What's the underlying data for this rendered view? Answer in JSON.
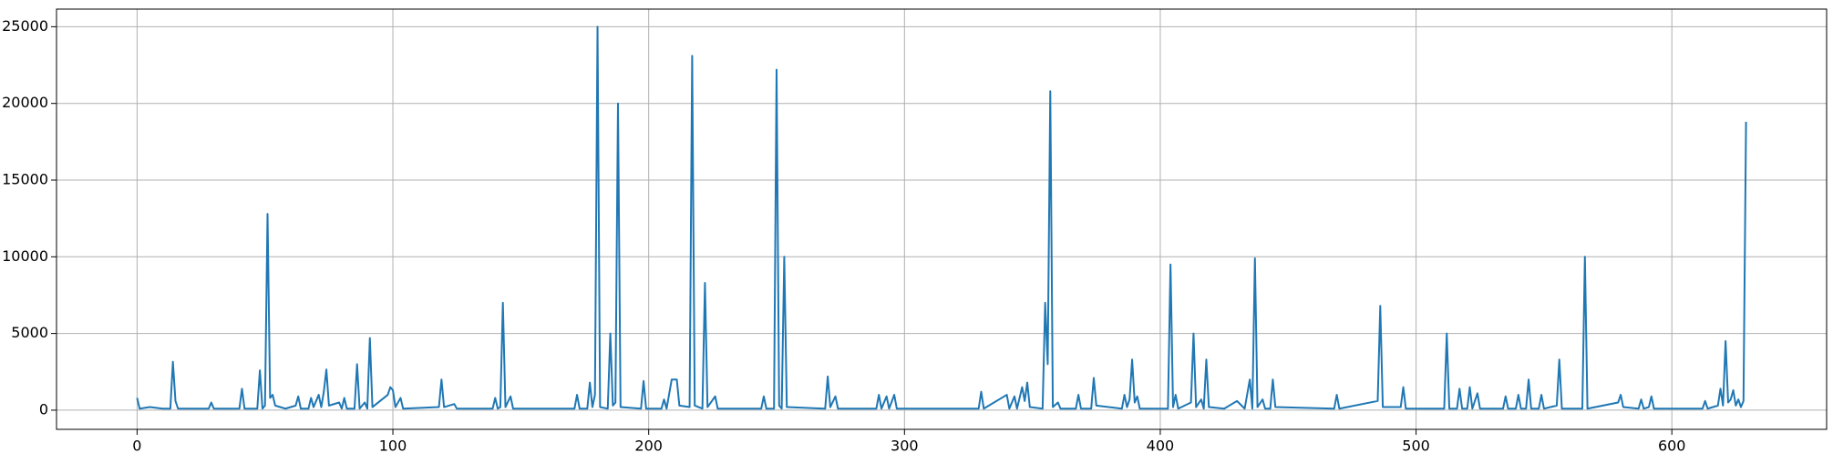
{
  "chart_data": {
    "type": "line",
    "x": [
      0,
      1,
      5,
      10,
      13,
      14,
      15,
      16,
      28,
      29,
      30,
      40,
      41,
      42,
      47,
      48,
      49,
      50,
      51,
      52,
      53,
      54,
      58,
      62,
      63,
      64,
      67,
      68,
      69,
      71,
      72,
      73,
      74,
      75,
      79,
      80,
      81,
      82,
      85,
      86,
      87,
      89,
      90,
      91,
      92,
      98,
      99,
      100,
      101,
      103,
      104,
      118,
      119,
      120,
      124,
      125,
      139,
      140,
      141,
      142,
      143,
      144,
      146,
      147,
      171,
      172,
      173,
      176,
      177,
      178,
      179,
      180,
      181,
      184,
      185,
      186,
      187,
      188,
      189,
      197,
      198,
      199,
      205,
      206,
      207,
      209,
      211,
      212,
      216,
      217,
      218,
      221,
      222,
      223,
      226,
      227,
      244,
      245,
      246,
      249,
      250,
      251,
      252,
      253,
      254,
      269,
      270,
      271,
      273,
      274,
      289,
      290,
      291,
      293,
      294,
      296,
      297,
      329,
      330,
      331,
      340,
      341,
      343,
      344,
      346,
      347,
      348,
      349,
      354,
      355,
      356,
      357,
      358,
      360,
      361,
      367,
      368,
      369,
      373,
      374,
      375,
      385,
      386,
      387,
      388,
      389,
      390,
      391,
      392,
      403,
      404,
      405,
      406,
      407,
      412,
      413,
      414,
      416,
      417,
      418,
      419,
      425,
      430,
      433,
      435,
      436,
      437,
      438,
      440,
      441,
      443,
      444,
      445,
      468,
      469,
      470,
      485,
      486,
      487,
      494,
      495,
      496,
      511,
      512,
      513,
      516,
      517,
      518,
      520,
      521,
      522,
      524,
      525,
      534,
      535,
      536,
      539,
      540,
      541,
      543,
      544,
      545,
      548,
      549,
      550,
      555,
      556,
      557,
      565,
      566,
      567,
      579,
      580,
      581,
      587,
      588,
      589,
      591,
      592,
      593,
      612,
      613,
      614,
      618,
      619,
      620,
      621,
      622,
      623,
      624,
      625,
      626,
      627,
      628,
      629
    ],
    "series": [
      {
        "color": "#1f77b4",
        "values": [
          800,
          100,
          200,
          100,
          100,
          3150,
          600,
          100,
          100,
          500,
          100,
          100,
          1400,
          100,
          100,
          2600,
          100,
          300,
          12800,
          800,
          1000,
          300,
          100,
          300,
          900,
          100,
          100,
          800,
          200,
          1000,
          200,
          1200,
          2650,
          300,
          500,
          100,
          800,
          100,
          100,
          3000,
          100,
          500,
          100,
          4700,
          200,
          1000,
          1500,
          1300,
          200,
          800,
          100,
          200,
          2000,
          200,
          400,
          100,
          100,
          800,
          100,
          200,
          7000,
          200,
          900,
          100,
          100,
          1000,
          100,
          100,
          1800,
          200,
          1000,
          25000,
          200,
          100,
          5000,
          300,
          500,
          20000,
          200,
          100,
          1900,
          100,
          100,
          700,
          100,
          2000,
          2000,
          300,
          200,
          23100,
          300,
          100,
          8300,
          200,
          900,
          100,
          100,
          900,
          100,
          100,
          22200,
          300,
          100,
          10000,
          200,
          100,
          2200,
          200,
          900,
          100,
          100,
          1000,
          100,
          900,
          100,
          1000,
          100,
          100,
          1200,
          100,
          1000,
          100,
          900,
          100,
          1500,
          600,
          1800,
          200,
          100,
          7000,
          3000,
          20800,
          200,
          500,
          100,
          100,
          1000,
          100,
          100,
          2100,
          300,
          100,
          1000,
          200,
          700,
          3300,
          500,
          900,
          100,
          100,
          9500,
          200,
          1000,
          100,
          500,
          5000,
          200,
          700,
          100,
          3300,
          200,
          100,
          600,
          100,
          2000,
          100,
          9900,
          200,
          700,
          100,
          100,
          2000,
          200,
          100,
          1000,
          100,
          600,
          6800,
          200,
          200,
          1500,
          100,
          100,
          5000,
          100,
          100,
          1400,
          100,
          100,
          1500,
          100,
          1100,
          100,
          100,
          900,
          100,
          100,
          1000,
          100,
          100,
          2000,
          100,
          100,
          1000,
          100,
          300,
          3300,
          100,
          100,
          10000,
          100,
          500,
          1000,
          200,
          100,
          700,
          100,
          200,
          900,
          100,
          100,
          600,
          100,
          300,
          1400,
          300,
          4500,
          500,
          700,
          1300,
          300,
          700,
          200,
          600,
          18800
        ]
      }
    ],
    "xlim": [
      -31.5,
      660.5
    ],
    "xticks": [
      0,
      100,
      200,
      300,
      400,
      500,
      600
    ],
    "ylim": [
      -1250,
      26150
    ],
    "yticks": [
      0,
      5000,
      10000,
      15000,
      20000,
      25000
    ],
    "grid": true
  }
}
